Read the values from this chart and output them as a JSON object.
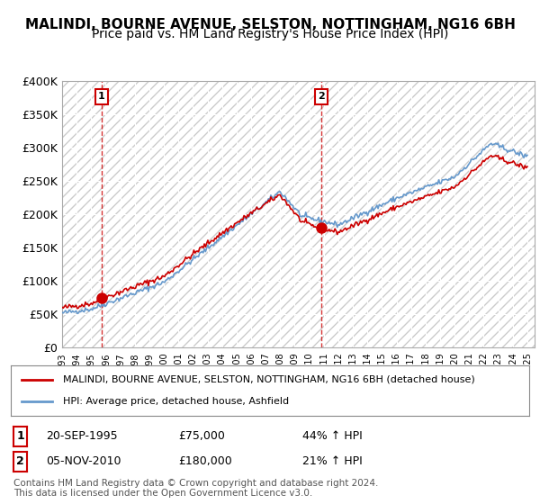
{
  "title": "MALINDI, BOURNE AVENUE, SELSTON, NOTTINGHAM, NG16 6BH",
  "subtitle": "Price paid vs. HM Land Registry's House Price Index (HPI)",
  "title_fontsize": 11,
  "subtitle_fontsize": 10,
  "bg_color": "#ffffff",
  "plot_bg_color": "#f0f0f0",
  "hatch_color": "#d0d0d0",
  "grid_color": "#ffffff",
  "ylabel": "",
  "ylim": [
    0,
    400000
  ],
  "yticks": [
    0,
    50000,
    100000,
    150000,
    200000,
    250000,
    300000,
    350000,
    400000
  ],
  "ytick_labels": [
    "£0",
    "£50K",
    "£100K",
    "£150K",
    "£200K",
    "£250K",
    "£300K",
    "£350K",
    "£400K"
  ],
  "xlim_start": 1993.0,
  "xlim_end": 2025.5,
  "xtick_years": [
    1993,
    1994,
    1995,
    1996,
    1997,
    1998,
    1999,
    2000,
    2001,
    2002,
    2003,
    2004,
    2005,
    2006,
    2007,
    2008,
    2009,
    2010,
    2011,
    2012,
    2013,
    2014,
    2015,
    2016,
    2017,
    2018,
    2019,
    2020,
    2021,
    2022,
    2023,
    2024,
    2025
  ],
  "red_line_color": "#cc0000",
  "blue_line_color": "#6699cc",
  "marker_color": "#cc0000",
  "sale1_x": 1995.72,
  "sale1_y": 75000,
  "sale2_x": 2010.84,
  "sale2_y": 180000,
  "sale1_label": "1",
  "sale2_label": "2",
  "dashed_line_color": "#cc0000",
  "legend_line1": "MALINDI, BOURNE AVENUE, SELSTON, NOTTINGHAM, NG16 6BH (detached house)",
  "legend_line2": "HPI: Average price, detached house, Ashfield",
  "table_row1": [
    "1",
    "20-SEP-1995",
    "£75,000",
    "44% ↑ HPI"
  ],
  "table_row2": [
    "2",
    "05-NOV-2010",
    "£180,000",
    "21% ↑ HPI"
  ],
  "footer": "Contains HM Land Registry data © Crown copyright and database right 2024.\nThis data is licensed under the Open Government Licence v3.0.",
  "footer_fontsize": 7.5
}
